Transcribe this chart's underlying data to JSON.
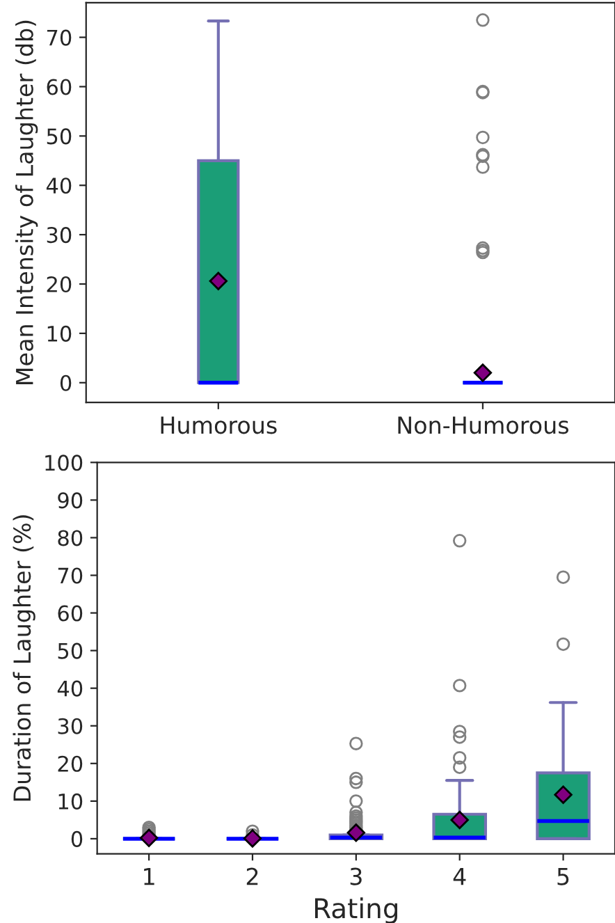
{
  "chart_data": [
    {
      "type": "box",
      "ylabel": "Mean Intensity of Laughter (db)",
      "categories": [
        "Humorous",
        "Non-Humorous"
      ],
      "ylim": [
        -4,
        77
      ],
      "yticks": [
        0,
        10,
        20,
        30,
        40,
        50,
        60,
        70
      ],
      "grid": false,
      "series": [
        {
          "color": "#1b9e77",
          "boxes": [
            {
              "low": 0,
              "q1": 0,
              "median": 0,
              "q3": 45,
              "high": 73.3,
              "mean": 20.6
            },
            {
              "low": 0,
              "q1": 0,
              "median": 0,
              "q3": 0,
              "high": 0,
              "mean": 2,
              "outliers": [
                73.5,
                59,
                58.8,
                49.7,
                46.2,
                45.9,
                43.7,
                27.3,
                26.8,
                26.4
              ]
            }
          ]
        }
      ]
    },
    {
      "type": "box",
      "ylabel": "Duration of Laughter (%)",
      "xlabel": "Rating",
      "categories": [
        "1",
        "2",
        "3",
        "4",
        "5"
      ],
      "ylim": [
        -4,
        100
      ],
      "yticks": [
        0,
        10,
        20,
        30,
        40,
        50,
        60,
        70,
        80,
        90,
        100
      ],
      "grid": false,
      "series": [
        {
          "color": "#1b9e77",
          "boxes": [
            {
              "low": 0,
              "q1": 0,
              "median": 0,
              "q3": 0,
              "high": 0,
              "mean": 0.2,
              "outliers": [
                1,
                1.5,
                2,
                2.5,
                3
              ]
            },
            {
              "low": 0,
              "q1": 0,
              "median": 0,
              "q3": 0,
              "high": 0,
              "mean": 0.1,
              "outliers": [
                1,
                2
              ]
            },
            {
              "low": 0,
              "q1": 0,
              "median": 0.3,
              "q3": 1,
              "high": 1,
              "mean": 1.6,
              "outliers": [
                2.5,
                3,
                3.5,
                4,
                4.5,
                5,
                5.5,
                6,
                7,
                10,
                15,
                16,
                25.3
              ]
            },
            {
              "low": 0,
              "q1": 0,
              "median": 0.3,
              "q3": 6.5,
              "high": 15.5,
              "mean": 5,
              "outliers": [
                19,
                21.5,
                27,
                28.5,
                40.7,
                79.2
              ]
            },
            {
              "low": 0,
              "q1": 0,
              "median": 4.7,
              "q3": 17.5,
              "high": 36.2,
              "mean": 11.7,
              "outliers": [
                51.7,
                69.5
              ]
            }
          ]
        }
      ]
    }
  ]
}
